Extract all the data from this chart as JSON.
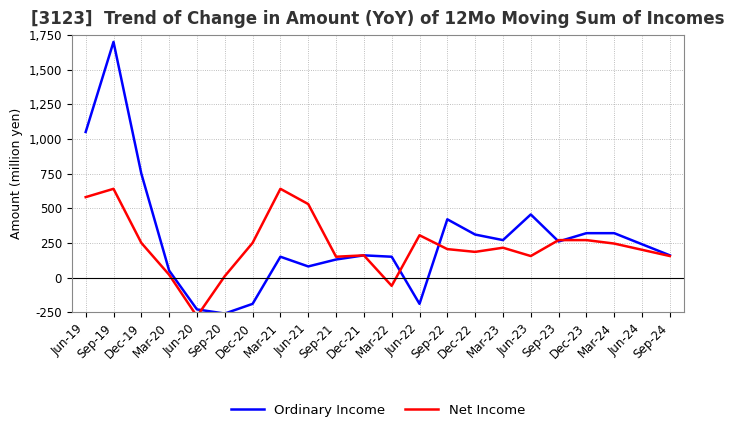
{
  "title": "[3123]  Trend of Change in Amount (YoY) of 12Mo Moving Sum of Incomes",
  "ylabel": "Amount (million yen)",
  "x_labels": [
    "Jun-19",
    "Sep-19",
    "Dec-19",
    "Mar-20",
    "Jun-20",
    "Sep-20",
    "Dec-20",
    "Mar-21",
    "Jun-21",
    "Sep-21",
    "Dec-21",
    "Mar-22",
    "Jun-22",
    "Sep-22",
    "Dec-22",
    "Mar-23",
    "Jun-23",
    "Sep-23",
    "Dec-23",
    "Mar-24",
    "Jun-24",
    "Sep-24"
  ],
  "ordinary_income": [
    1050,
    1700,
    750,
    50,
    -230,
    -260,
    -190,
    150,
    80,
    130,
    160,
    150,
    -190,
    420,
    310,
    270,
    455,
    260,
    320,
    320,
    240,
    160
  ],
  "net_income": [
    580,
    640,
    250,
    20,
    -280,
    10,
    250,
    640,
    530,
    150,
    160,
    -60,
    305,
    205,
    185,
    215,
    155,
    270,
    270,
    245,
    200,
    155
  ],
  "ordinary_income_color": "#0000FF",
  "net_income_color": "#FF0000",
  "background_color": "#FFFFFF",
  "plot_bg_color": "#FFFFFF",
  "grid_color": "#AAAAAA",
  "ylim": [
    -250,
    1750
  ],
  "yticks": [
    -250,
    0,
    250,
    500,
    750,
    1000,
    1250,
    1500,
    1750
  ],
  "legend_ordinary": "Ordinary Income",
  "legend_net": "Net Income",
  "title_fontsize": 12,
  "axis_fontsize": 9,
  "tick_fontsize": 8.5,
  "line_width": 1.8
}
